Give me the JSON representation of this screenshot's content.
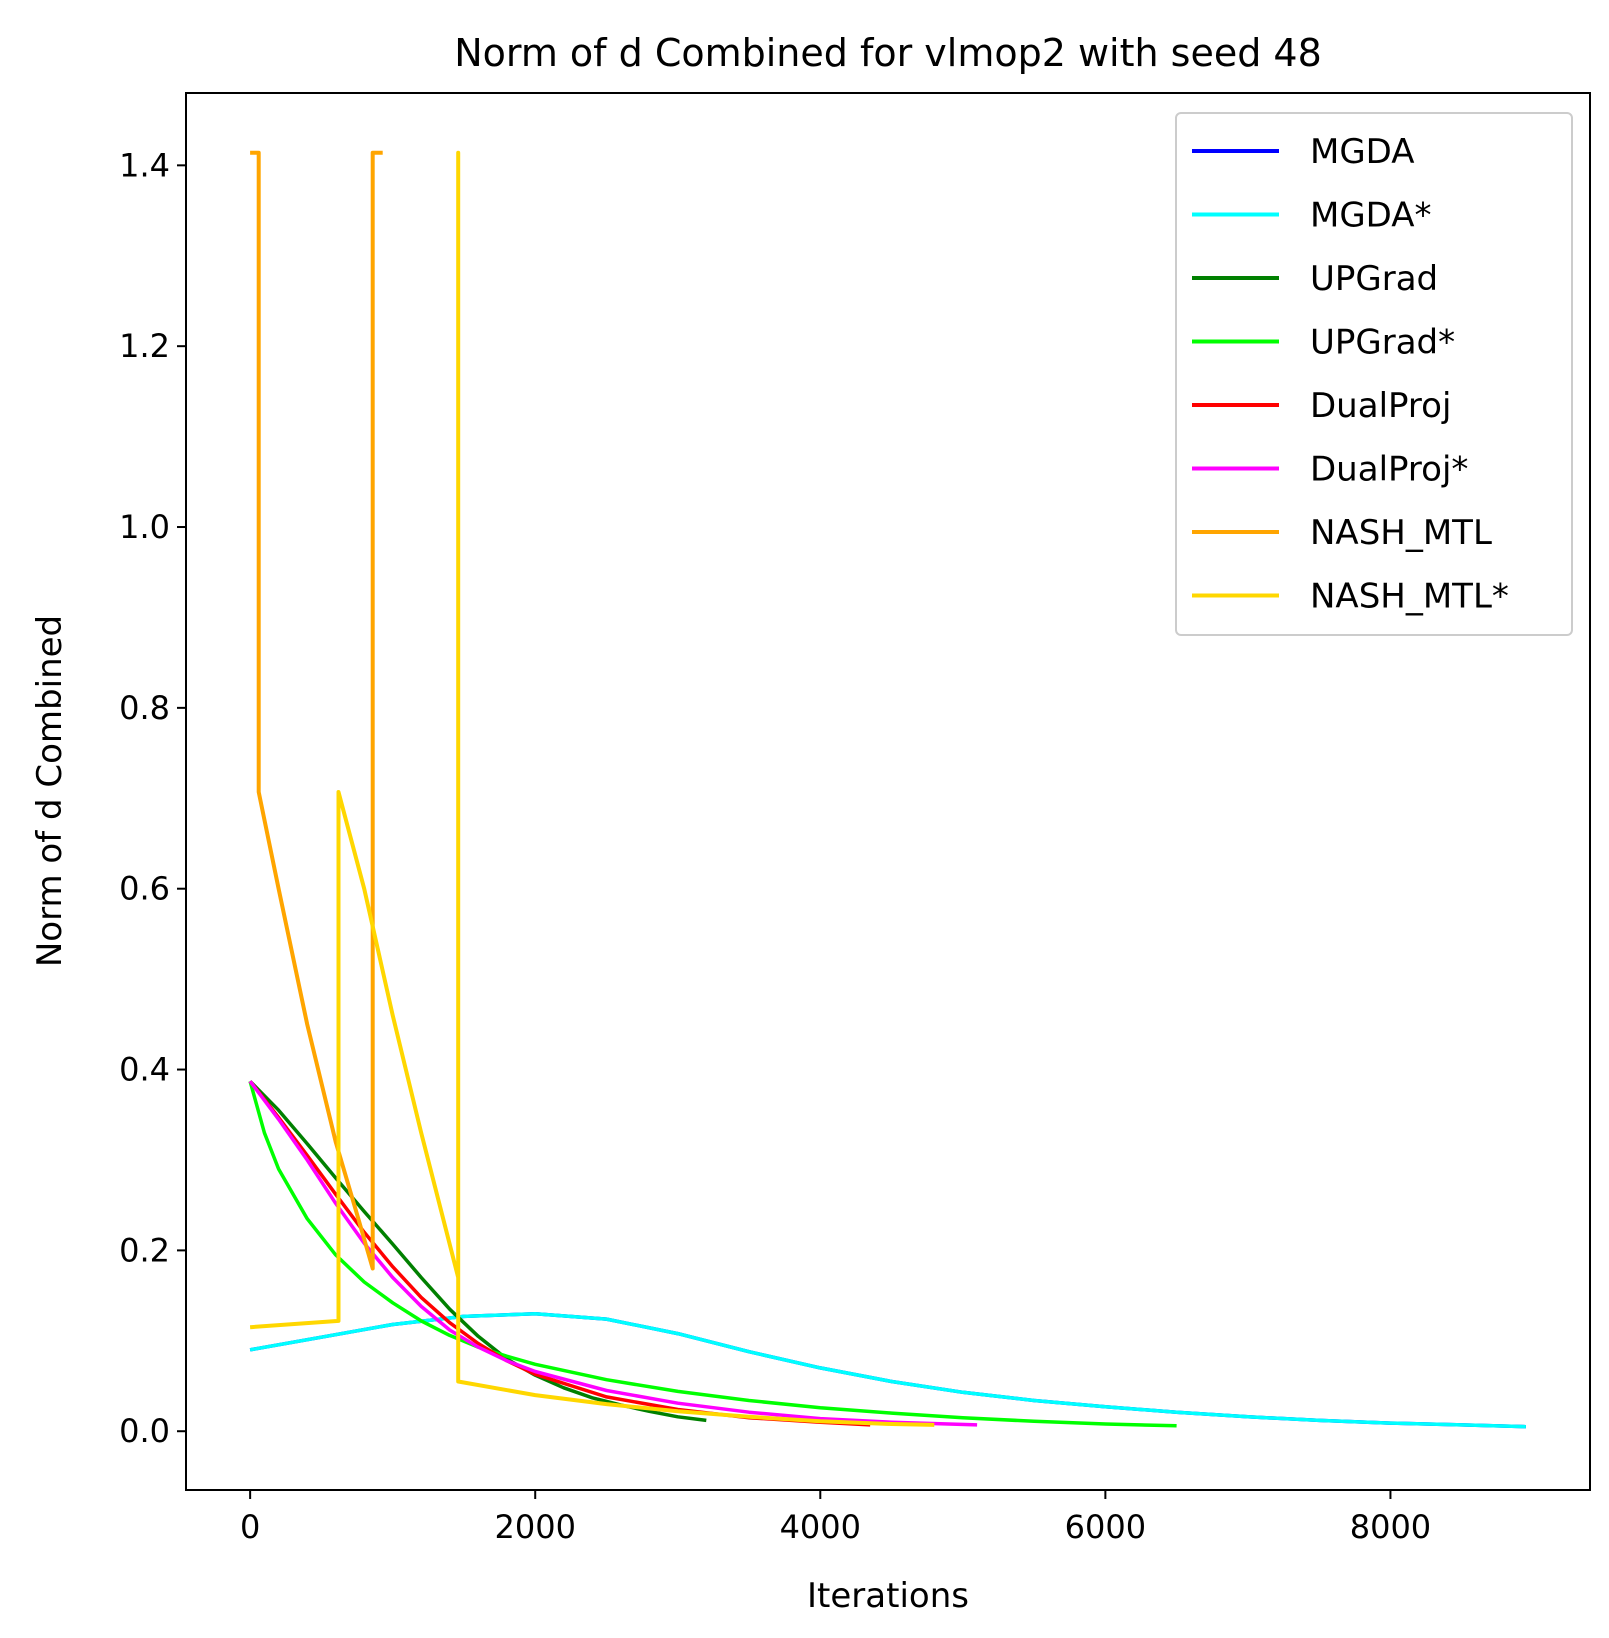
{
  "chart_data": {
    "type": "line",
    "title": "Norm of d Combined for vlmop2 with seed 48",
    "xlabel": "Iterations",
    "ylabel": "Norm of d Combined",
    "xlim": [
      -450,
      9400
    ],
    "ylim": [
      -0.065,
      1.48
    ],
    "xticks": [
      0,
      2000,
      4000,
      6000,
      8000
    ],
    "xtick_labels": [
      "0",
      "2000",
      "4000",
      "6000",
      "8000"
    ],
    "yticks": [
      0.0,
      0.2,
      0.4,
      0.6,
      0.8,
      1.0,
      1.2,
      1.4
    ],
    "ytick_labels": [
      "0.0",
      "0.2",
      "0.4",
      "0.6",
      "0.8",
      "1.0",
      "1.2",
      "1.4"
    ],
    "grid": false,
    "legend_position": "upper right",
    "series": [
      {
        "name": "MGDA",
        "color": "#0000ff",
        "points": [
          [
            0,
            0.09
          ],
          [
            500,
            0.104
          ],
          [
            1000,
            0.118
          ],
          [
            1500,
            0.127
          ],
          [
            2000,
            0.13
          ],
          [
            2500,
            0.124
          ],
          [
            3000,
            0.108
          ],
          [
            3500,
            0.088
          ],
          [
            4000,
            0.07
          ],
          [
            4500,
            0.055
          ],
          [
            5000,
            0.043
          ],
          [
            5500,
            0.034
          ],
          [
            6000,
            0.027
          ],
          [
            6500,
            0.021
          ],
          [
            7000,
            0.016
          ],
          [
            7500,
            0.012
          ],
          [
            8000,
            0.009
          ],
          [
            8500,
            0.007
          ],
          [
            8950,
            0.005
          ]
        ]
      },
      {
        "name": "MGDA*",
        "color": "#00ffff",
        "points": [
          [
            0,
            0.09
          ],
          [
            500,
            0.104
          ],
          [
            1000,
            0.118
          ],
          [
            1500,
            0.127
          ],
          [
            2000,
            0.13
          ],
          [
            2500,
            0.124
          ],
          [
            3000,
            0.108
          ],
          [
            3500,
            0.088
          ],
          [
            4000,
            0.07
          ],
          [
            4500,
            0.055
          ],
          [
            5000,
            0.043
          ],
          [
            5500,
            0.034
          ],
          [
            6000,
            0.027
          ],
          [
            6500,
            0.021
          ],
          [
            7000,
            0.016
          ],
          [
            7500,
            0.012
          ],
          [
            8000,
            0.009
          ],
          [
            8500,
            0.007
          ],
          [
            8950,
            0.005
          ]
        ]
      },
      {
        "name": "UPGrad",
        "color": "#008000",
        "points": [
          [
            0,
            0.387
          ],
          [
            200,
            0.355
          ],
          [
            400,
            0.318
          ],
          [
            600,
            0.28
          ],
          [
            800,
            0.243
          ],
          [
            1000,
            0.207
          ],
          [
            1200,
            0.17
          ],
          [
            1400,
            0.135
          ],
          [
            1600,
            0.105
          ],
          [
            1800,
            0.08
          ],
          [
            2000,
            0.062
          ],
          [
            2200,
            0.048
          ],
          [
            2400,
            0.037
          ],
          [
            2600,
            0.029
          ],
          [
            2800,
            0.022
          ],
          [
            3000,
            0.016
          ],
          [
            3200,
            0.012
          ]
        ]
      },
      {
        "name": "UPGrad*",
        "color": "#00ff00",
        "points": [
          [
            0,
            0.387
          ],
          [
            100,
            0.33
          ],
          [
            200,
            0.29
          ],
          [
            400,
            0.235
          ],
          [
            600,
            0.195
          ],
          [
            800,
            0.165
          ],
          [
            1000,
            0.142
          ],
          [
            1200,
            0.122
          ],
          [
            1400,
            0.106
          ],
          [
            1600,
            0.093
          ],
          [
            1800,
            0.083
          ],
          [
            2000,
            0.074
          ],
          [
            2500,
            0.057
          ],
          [
            3000,
            0.044
          ],
          [
            3500,
            0.034
          ],
          [
            4000,
            0.026
          ],
          [
            4500,
            0.02
          ],
          [
            5000,
            0.015
          ],
          [
            5500,
            0.011
          ],
          [
            6000,
            0.008
          ],
          [
            6500,
            0.006
          ]
        ]
      },
      {
        "name": "DualProj",
        "color": "#ff0000",
        "points": [
          [
            0,
            0.387
          ],
          [
            200,
            0.347
          ],
          [
            400,
            0.305
          ],
          [
            600,
            0.262
          ],
          [
            800,
            0.22
          ],
          [
            1000,
            0.182
          ],
          [
            1200,
            0.148
          ],
          [
            1400,
            0.12
          ],
          [
            1600,
            0.097
          ],
          [
            1800,
            0.078
          ],
          [
            2000,
            0.063
          ],
          [
            2500,
            0.038
          ],
          [
            3000,
            0.024
          ],
          [
            3500,
            0.015
          ],
          [
            4000,
            0.01
          ],
          [
            4350,
            0.007
          ]
        ]
      },
      {
        "name": "DualProj*",
        "color": "#ff00ff",
        "points": [
          [
            0,
            0.387
          ],
          [
            200,
            0.345
          ],
          [
            400,
            0.3
          ],
          [
            600,
            0.252
          ],
          [
            800,
            0.208
          ],
          [
            1000,
            0.17
          ],
          [
            1200,
            0.138
          ],
          [
            1400,
            0.112
          ],
          [
            1600,
            0.093
          ],
          [
            1800,
            0.078
          ],
          [
            2000,
            0.066
          ],
          [
            2500,
            0.045
          ],
          [
            3000,
            0.031
          ],
          [
            3500,
            0.021
          ],
          [
            4000,
            0.014
          ],
          [
            4500,
            0.01
          ],
          [
            5100,
            0.007
          ]
        ]
      },
      {
        "name": "NASH_MTL",
        "color": "#ffa500",
        "points": [
          [
            0,
            1.414
          ],
          [
            60,
            1.414
          ],
          [
            60,
            0.707
          ],
          [
            200,
            0.6
          ],
          [
            400,
            0.45
          ],
          [
            600,
            0.32
          ],
          [
            750,
            0.24
          ],
          [
            860,
            0.18
          ],
          [
            860,
            1.414
          ],
          [
            930,
            1.414
          ]
        ]
      },
      {
        "name": "NASH_MTL*",
        "color": "#ffd700",
        "points": [
          [
            0,
            0.115
          ],
          [
            620,
            0.122
          ],
          [
            620,
            0.707
          ],
          [
            800,
            0.6
          ],
          [
            1000,
            0.46
          ],
          [
            1200,
            0.33
          ],
          [
            1460,
            0.17
          ],
          [
            1460,
            1.414
          ],
          [
            1460,
            0.055
          ],
          [
            2000,
            0.04
          ],
          [
            2500,
            0.03
          ],
          [
            3000,
            0.022
          ],
          [
            3500,
            0.016
          ],
          [
            4000,
            0.011
          ],
          [
            4500,
            0.008
          ],
          [
            4800,
            0.007
          ]
        ]
      }
    ]
  }
}
